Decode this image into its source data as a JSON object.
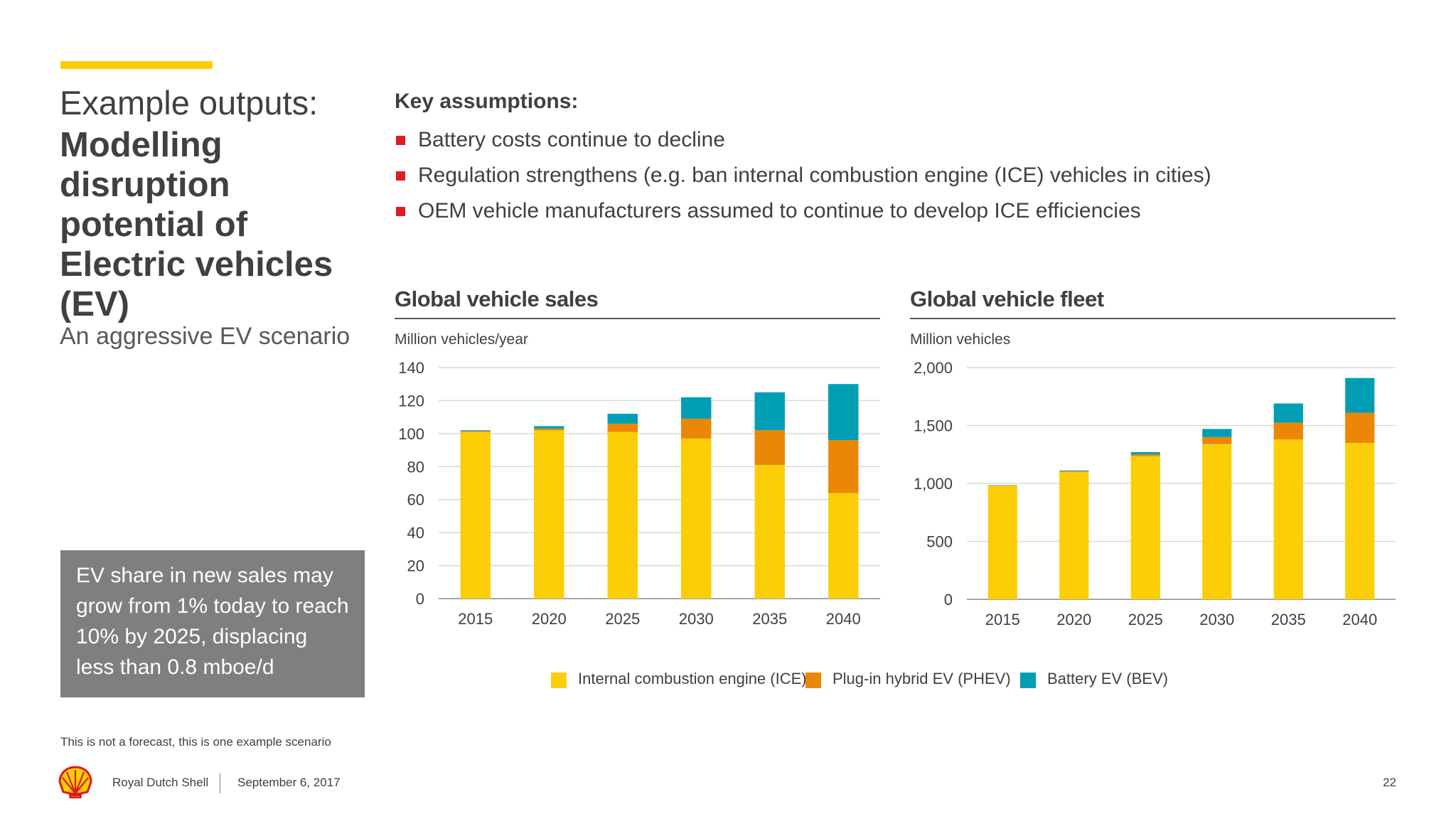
{
  "heading": {
    "light": "Example outputs:",
    "bold": "Modelling disruption potential of Electric vehicles (EV)",
    "sub": "An aggressive EV scenario"
  },
  "callout": "EV share in new sales may grow from 1% today to reach 10% by 2025, displacing less than 0.8 mboe/d",
  "note": "This is not a forecast, this is one example scenario",
  "assumptions": {
    "title": "Key assumptions:",
    "items": [
      "Battery costs continue to decline",
      "Regulation strengthens (e.g. ban internal combustion engine (ICE) vehicles in cities)",
      "OEM vehicle manufacturers assumed to continue to develop ICE efficiencies"
    ]
  },
  "colors": {
    "accent": "#fbce07",
    "bullet": "#dd1d21",
    "callout_bg": "#7f7f7f",
    "ice": "#fbce07",
    "phev": "#eb8705",
    "bev": "#009eb4",
    "grid": "#d9d9d9"
  },
  "legend": [
    {
      "label": "Internal combustion engine (ICE)",
      "color": "#fbce07"
    },
    {
      "label": "Plug-in hybrid EV (PHEV)",
      "color": "#eb8705"
    },
    {
      "label": "Battery EV (BEV)",
      "color": "#009eb4"
    }
  ],
  "chart_data": [
    {
      "type": "bar",
      "stacked": true,
      "title": "Global vehicle sales",
      "ylabel": "Million vehicles/year",
      "xlabel": "",
      "categories": [
        "2015",
        "2020",
        "2025",
        "2030",
        "2035",
        "2040"
      ],
      "ylim": [
        0,
        140
      ],
      "yticks": [
        0,
        20,
        40,
        60,
        80,
        100,
        120,
        140
      ],
      "ytick_labels": [
        "0",
        "20",
        "40",
        "60",
        "80",
        "100",
        "120",
        "140"
      ],
      "grid": true,
      "series": [
        {
          "name": "Internal combustion engine (ICE)",
          "values": [
            101,
            102,
            101,
            97,
            81,
            64
          ]
        },
        {
          "name": "Plug-in hybrid EV (PHEV)",
          "values": [
            0.5,
            1,
            5,
            12,
            21,
            32
          ]
        },
        {
          "name": "Battery EV (BEV)",
          "values": [
            0.5,
            1.5,
            6,
            13,
            23,
            34
          ]
        }
      ]
    },
    {
      "type": "bar",
      "stacked": true,
      "title": "Global vehicle fleet",
      "ylabel": "Million vehicles",
      "xlabel": "",
      "categories": [
        "2015",
        "2020",
        "2025",
        "2030",
        "2035",
        "2040"
      ],
      "ylim": [
        0,
        2000
      ],
      "yticks": [
        0,
        500,
        1000,
        1500,
        2000
      ],
      "ytick_labels": [
        "0",
        "500",
        "1,000",
        "1,500",
        "2,000"
      ],
      "grid": true,
      "series": [
        {
          "name": "Internal combustion engine (ICE)",
          "values": [
            980,
            1100,
            1235,
            1340,
            1380,
            1350
          ]
        },
        {
          "name": "Plug-in hybrid EV (PHEV)",
          "values": [
            2,
            6,
            15,
            60,
            145,
            260
          ]
        },
        {
          "name": "Battery EV (BEV)",
          "values": [
            3,
            6,
            20,
            70,
            165,
            300
          ]
        }
      ]
    }
  ],
  "footer": {
    "company": "Royal Dutch Shell",
    "date": "September 6, 2017",
    "page": "22"
  }
}
